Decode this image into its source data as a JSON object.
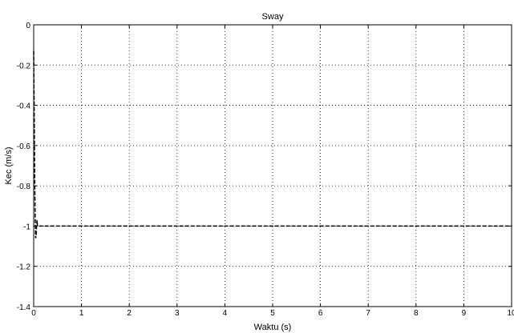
{
  "chart_data": {
    "type": "line",
    "title": "Sway",
    "xlabel": "Waktu (s)",
    "ylabel": "Kec (m/s)",
    "xlim": [
      0,
      10
    ],
    "ylim": [
      -1.4,
      0
    ],
    "xticks": [
      0,
      1,
      2,
      3,
      4,
      5,
      6,
      7,
      8,
      9,
      10
    ],
    "yticks": [
      0,
      -0.2,
      -0.4,
      -0.6,
      -0.8,
      -1,
      -1.2,
      -1.4
    ],
    "xtick_labels": [
      "0",
      "1",
      "2",
      "3",
      "4",
      "5",
      "6",
      "7",
      "8",
      "9",
      "10"
    ],
    "ytick_labels": [
      "0",
      "-0.2",
      "-0.4",
      "-0.6",
      "-0.8",
      "-1",
      "-1.2",
      "-1.4"
    ],
    "grid": true,
    "grid_style": "dotted",
    "series": [
      {
        "line_style": "dashed",
        "color": "#000000",
        "x": [
          0,
          0.01,
          0.02,
          0.03,
          0.04,
          0.05,
          0.06,
          0.07,
          0.08,
          0.1,
          0.15,
          0.3,
          1,
          2,
          3,
          4,
          5,
          6,
          7,
          8,
          9,
          10
        ],
        "y": [
          -0.13,
          -0.4,
          -0.7,
          -0.95,
          -1.06,
          -1.05,
          -1.0,
          -0.97,
          -1.0,
          -1.0,
          -1.0,
          -1.0,
          -1.0,
          -1.0,
          -1.0,
          -1.0,
          -1.0,
          -1.0,
          -1.0,
          -1.0,
          -1.0,
          -1.0
        ]
      }
    ]
  }
}
